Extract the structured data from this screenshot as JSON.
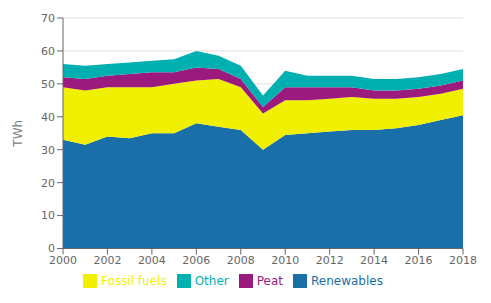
{
  "chart_data": {
    "type": "area",
    "stacked": true,
    "x": [
      2000,
      2001,
      2002,
      2003,
      2004,
      2005,
      2006,
      2007,
      2008,
      2009,
      2010,
      2011,
      2012,
      2013,
      2014,
      2015,
      2016,
      2017,
      2018
    ],
    "series": [
      {
        "name": "Renewables",
        "color": "#1a6fa8",
        "values": [
          33,
          31.5,
          34,
          33.5,
          35,
          35,
          38,
          37,
          36,
          30,
          34.5,
          35,
          35.5,
          36,
          36,
          36.5,
          37.5,
          39,
          40.5
        ]
      },
      {
        "name": "Fossil fuels",
        "color": "#f0f000",
        "values": [
          16,
          16.5,
          15,
          15.5,
          14,
          15,
          13,
          14.5,
          13,
          11,
          10.5,
          10,
          10,
          10,
          9.5,
          9,
          8.5,
          8,
          8
        ]
      },
      {
        "name": "Peat",
        "color": "#9b1a7e",
        "values": [
          3,
          3.5,
          3.5,
          4,
          4.5,
          3.5,
          4,
          3,
          2.5,
          2,
          4,
          4,
          3.5,
          3,
          2.5,
          2.5,
          2.5,
          2.5,
          2.5
        ]
      },
      {
        "name": "Other",
        "color": "#00b0b0",
        "values": [
          4,
          4,
          3.5,
          3.5,
          3.5,
          4,
          5,
          4,
          4,
          3.5,
          5,
          3.5,
          3.5,
          3.5,
          3.5,
          3.5,
          3.5,
          3.5,
          3.5
        ]
      }
    ],
    "ylabel": "TWh",
    "xlim": [
      2000,
      2018
    ],
    "xticks": [
      2000,
      2002,
      2004,
      2006,
      2008,
      2010,
      2012,
      2014,
      2016,
      2018
    ],
    "ylim": [
      0,
      70
    ],
    "yticks": [
      0,
      10,
      20,
      30,
      40,
      50,
      60,
      70
    ],
    "grid": true,
    "legend": "bottom"
  }
}
